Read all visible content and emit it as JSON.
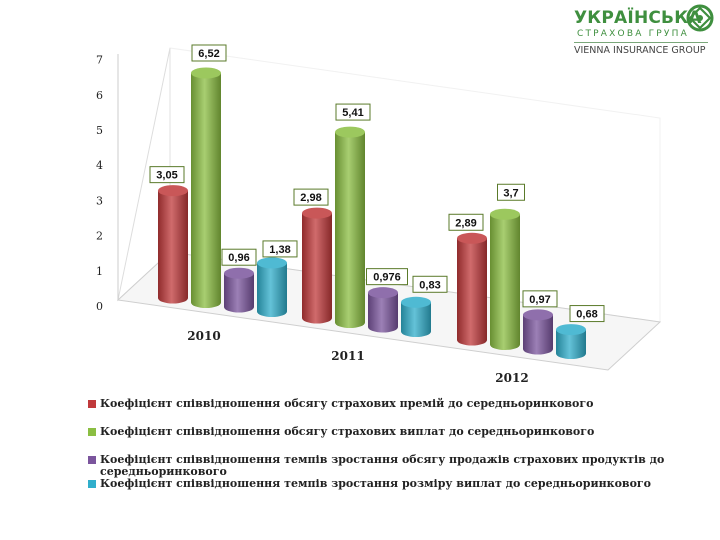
{
  "logo": {
    "name": "УКРАЇНСЬКА",
    "sub": "СТРАХОВА ГРУПА",
    "group": "VIENNA INSURANCE GROUP"
  },
  "chart_data": {
    "type": "bar",
    "categories": [
      "2010",
      "2011",
      "2012"
    ],
    "yticks": [
      "0",
      "1",
      "2",
      "3",
      "4",
      "5",
      "6",
      "7"
    ],
    "ylim": [
      0,
      7
    ],
    "series": [
      {
        "name": "Коефіцієнт співвідношення обсягу страхових премій до середньоринкового",
        "color": "#c0393b",
        "values": [
          3.05,
          2.98,
          2.89
        ],
        "labels": [
          "3,05",
          "2,98",
          "2,89"
        ]
      },
      {
        "name": "Коефіцієнт співвідношення обсягу страхових виплат до середньоринкового",
        "color": "#8bbe42",
        "values": [
          6.52,
          5.41,
          3.7
        ],
        "labels": [
          "6,52",
          "5,41",
          "3,7"
        ]
      },
      {
        "name": "Коефіцієнт співвідношення темпів зростання обсягу продажів страхових продуктів до середньоринкового",
        "color": "#7b559d",
        "values": [
          0.96,
          0.976,
          0.97
        ],
        "labels": [
          "0,96",
          "0,976",
          "0,97"
        ]
      },
      {
        "name": "Коефіцієнт співвідношення темпів зростання розміру виплат до середньоринкового",
        "color": "#30aecb",
        "values": [
          1.38,
          0.83,
          0.68
        ],
        "labels": [
          "1,38",
          "0,83",
          "0,68"
        ]
      }
    ],
    "legend_position": "bottom",
    "grid": false
  }
}
